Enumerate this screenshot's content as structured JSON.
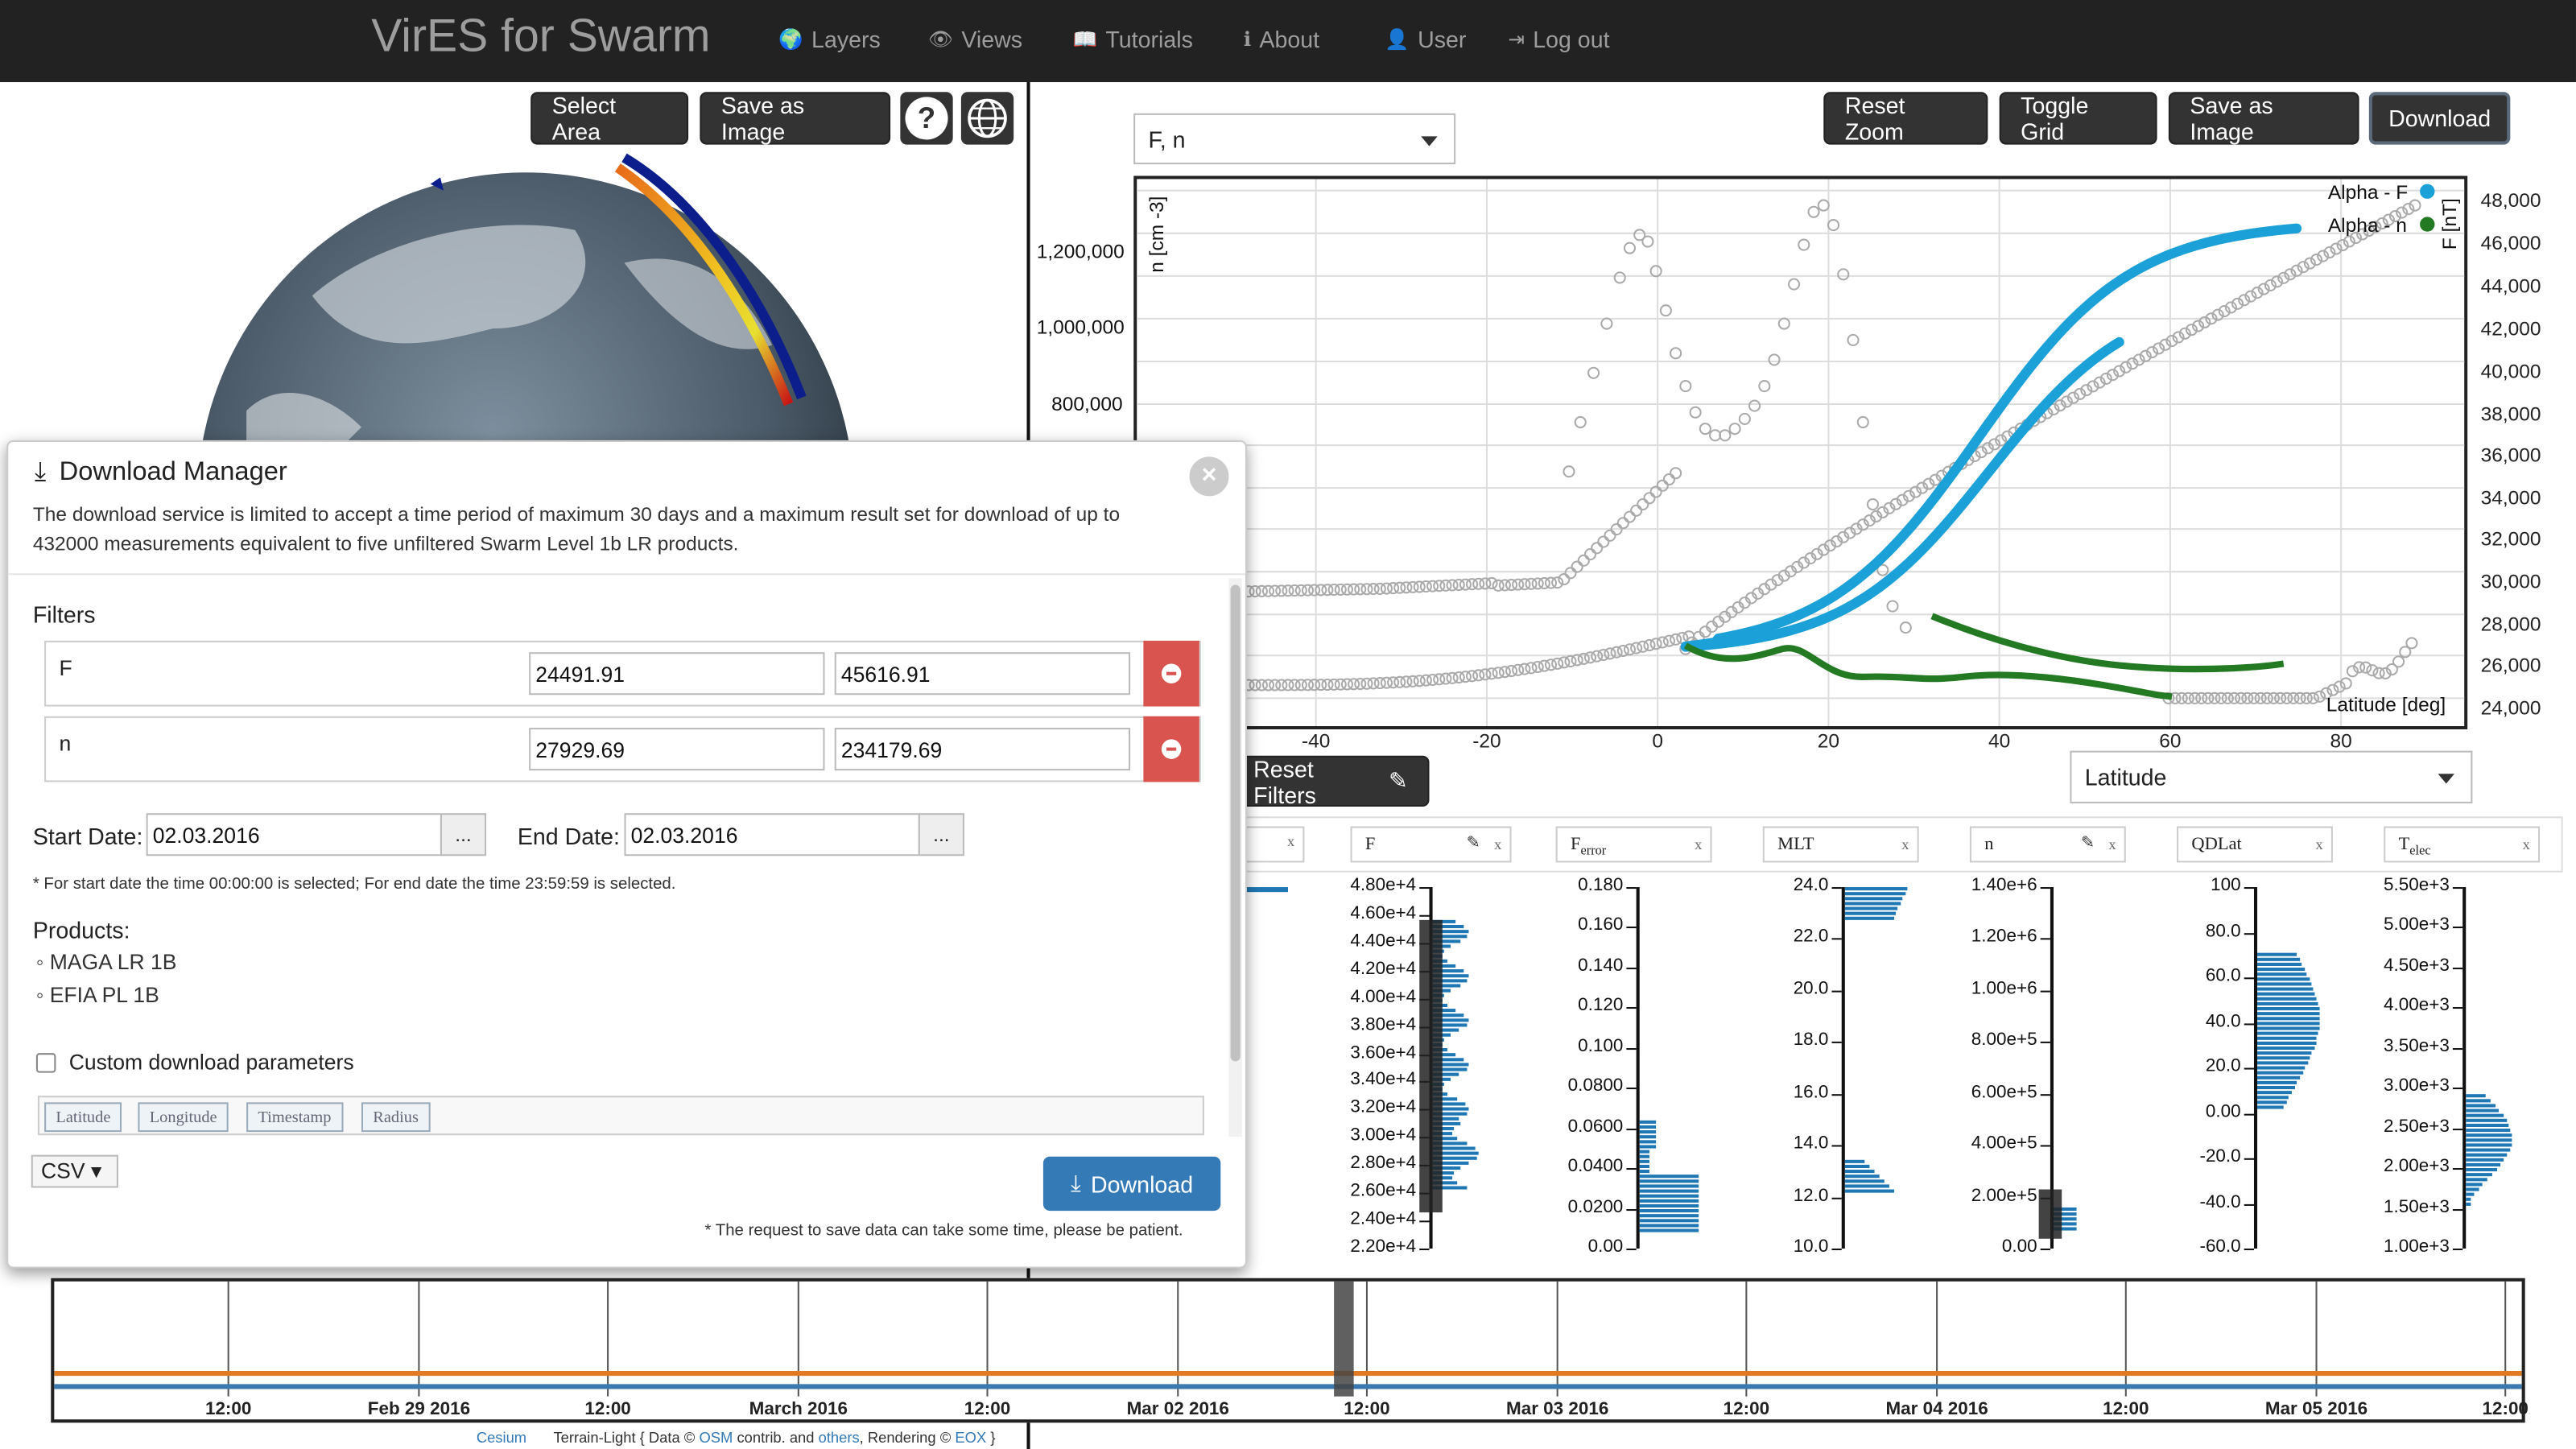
{
  "nav": {
    "brand": "VirES for Swarm",
    "items": [
      {
        "label": "Layers",
        "icon": "globe-icon",
        "glyph": "🌍"
      },
      {
        "label": "Views",
        "icon": "eye-icon",
        "glyph": "👁"
      },
      {
        "label": "Tutorials",
        "icon": "book-icon",
        "glyph": "📖"
      },
      {
        "label": "About",
        "icon": "info-icon",
        "glyph": "ℹ"
      },
      {
        "label": "User",
        "icon": "user-icon",
        "glyph": "👤"
      },
      {
        "label": "Log out",
        "icon": "logout-icon",
        "glyph": "⇥"
      }
    ]
  },
  "globe_toolbar": {
    "select_area": "Select Area",
    "save_image": "Save as Image",
    "help": "?"
  },
  "plot_toolbar": {
    "reset_zoom": "Reset Zoom",
    "toggle_grid": "Toggle Grid",
    "save_image": "Save as Image",
    "download": "Download"
  },
  "plot": {
    "param_select": "F, n",
    "y_left_label": "n [cm -3]",
    "y_right_label": "F [nT]",
    "x_label": "Latitude [deg]",
    "legend": [
      {
        "name": "Alpha - F",
        "color": "#1ba1d8"
      },
      {
        "name": "Alpha - n",
        "color": "#237a23"
      }
    ],
    "y_left_ticks": [
      "1,200,000",
      "1,000,000",
      "800,000"
    ],
    "y_right_ticks": [
      "48,000",
      "46,000",
      "44,000",
      "42,000",
      "40,000",
      "38,000",
      "36,000",
      "34,000",
      "32,000",
      "30,000",
      "28,000",
      "26,000",
      "24,000"
    ],
    "x_ticks": [
      "-40",
      "-20",
      "0",
      "20",
      "40",
      "60",
      "80"
    ],
    "x_select": "Latitude"
  },
  "filters_panel": {
    "reset_filters": "Reset Filters",
    "histograms": [
      {
        "label": "F",
        "ticks": [
          "4.80e+4",
          "4.60e+4",
          "4.40e+4",
          "4.20e+4",
          "4.00e+4",
          "3.80e+4",
          "3.60e+4",
          "3.40e+4",
          "3.20e+4",
          "3.00e+4",
          "2.80e+4",
          "2.60e+4",
          "2.40e+4",
          "2.20e+4"
        ]
      },
      {
        "label": "F",
        "sub": "error",
        "ticks": [
          "0.180",
          "0.160",
          "0.140",
          "0.120",
          "0.100",
          "0.0800",
          "0.0600",
          "0.0400",
          "0.0200",
          "0.00"
        ]
      },
      {
        "label": "MLT",
        "ticks": [
          "24.0",
          "22.0",
          "20.0",
          "18.0",
          "16.0",
          "14.0",
          "12.0",
          "10.0"
        ]
      },
      {
        "label": "n",
        "ticks": [
          "1.40e+6",
          "1.20e+6",
          "1.00e+6",
          "8.00e+5",
          "6.00e+5",
          "4.00e+5",
          "2.00e+5",
          "0.00"
        ]
      },
      {
        "label": "QDLat",
        "ticks": [
          "100",
          "80.0",
          "60.0",
          "40.0",
          "20.0",
          "0.00",
          "-20.0",
          "-40.0",
          "-60.0"
        ]
      },
      {
        "label": "T",
        "sub": "elec",
        "ticks": [
          "5.50e+3",
          "5.00e+3",
          "4.50e+3",
          "4.00e+3",
          "3.50e+3",
          "3.00e+3",
          "2.50e+3",
          "2.00e+3",
          "1.50e+3",
          "1.00e+3"
        ]
      }
    ]
  },
  "download_manager": {
    "title": "Download Manager",
    "description": "The download service is limited to accept a time period of maximum 30 days and a maximum result set for download of up to 432000 measurements equivalent to five unfiltered Swarm Level 1b LR products.",
    "filters_heading": "Filters",
    "filters": [
      {
        "name": "F",
        "min": "24491.91",
        "max": "45616.91"
      },
      {
        "name": "n",
        "min": "27929.69",
        "max": "234179.69"
      }
    ],
    "start_label": "Start Date:",
    "start_value": "02.03.2016",
    "end_label": "End Date:",
    "end_value": "02.03.2016",
    "date_btn": "...",
    "date_note": "* For start date the time 00:00:00 is selected; For end date the time 23:59:59 is selected.",
    "products_heading": "Products:",
    "products": [
      "MAGA LR 1B",
      "EFIA PL 1B"
    ],
    "custom_params": "Custom download parameters",
    "tags": [
      "Latitude",
      "Longitude",
      "Timestamp",
      "Radius"
    ],
    "format": "CSV ▾",
    "download": "Download",
    "note": "* The request to save data can take some time, please be patient."
  },
  "timeline": {
    "labels": [
      "12:00",
      "Feb 29 2016",
      "12:00",
      "March 2016",
      "12:00",
      "Mar 02 2016",
      "12:00",
      "Mar 03 2016",
      "12:00",
      "Mar 04 2016",
      "12:00",
      "Mar 05 2016",
      "12:00"
    ]
  },
  "attribution": {
    "cesium": "Cesium",
    "text1": "Terrain-Light { Data ©",
    "osm": "OSM",
    "text2": "contrib. and",
    "others": "others",
    "text3": ", Rendering ©",
    "eox": "EOX",
    "text4": "}"
  }
}
